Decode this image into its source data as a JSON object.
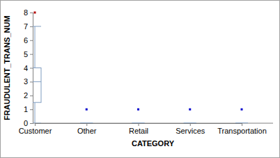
{
  "chart_data": {
    "type": "box",
    "x_label": "CATEGORY",
    "y_label": "FRAUDULENT_TRANS_NUM",
    "categories": [
      "Customer",
      "Other",
      "Retail",
      "Services",
      "Transportation"
    ],
    "min": [
      0,
      0,
      0,
      0,
      0
    ],
    "q1": [
      1.5,
      0,
      0,
      0,
      0
    ],
    "median": [
      3,
      0,
      0,
      0,
      0
    ],
    "q3": [
      4,
      0,
      0,
      0,
      0
    ],
    "max": [
      7,
      0,
      0,
      0,
      0
    ],
    "outliers": [
      [
        8
      ],
      [
        1
      ],
      [
        1
      ],
      [
        1
      ],
      [
        1
      ]
    ],
    "color": "#7f9cc0",
    "colors": [
      "#b00000",
      "#0000cc",
      "#0000cc",
      "#0000cc",
      "#0000cc"
    ],
    "ylim": [
      0,
      8
    ],
    "yticks": [
      0,
      1,
      2,
      3,
      4,
      5,
      6,
      7,
      8
    ]
  }
}
